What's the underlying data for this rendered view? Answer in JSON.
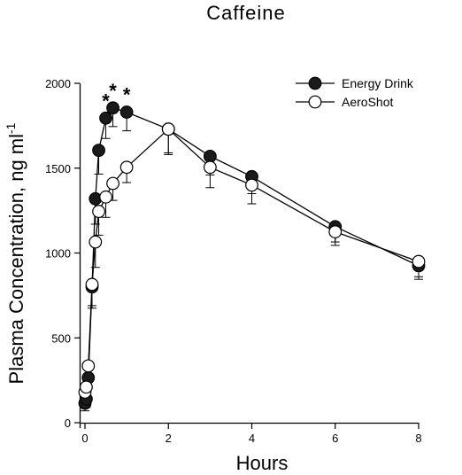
{
  "chart_data": {
    "type": "line",
    "title": "Caffeine",
    "xlabel": "Hours",
    "ylabel": "Plasma Concentration, ng ml",
    "ylabel_superscript": "-1",
    "xlim": [
      0,
      8
    ],
    "ylim": [
      0,
      2000
    ],
    "x_ticks": [
      "0",
      "2",
      "4",
      "6",
      "8"
    ],
    "y_ticks": [
      "0",
      "500",
      "1000",
      "1500",
      "2000"
    ],
    "legend_position": "top-right",
    "grid": false,
    "significance_marker": "*",
    "significant_x": [
      0.5,
      0.67,
      1
    ],
    "series": [
      {
        "name": "Energy Drink",
        "marker": "filled-circle",
        "color": "#1a1a1a",
        "x": [
          0,
          0.03,
          0.08,
          0.17,
          0.25,
          0.33,
          0.5,
          0.67,
          1,
          2,
          3,
          4,
          6,
          8
        ],
        "values": [
          115,
          140,
          265,
          800,
          1320,
          1605,
          1795,
          1855,
          1830,
          1730,
          1570,
          1450,
          1155,
          925
        ],
        "error": [
          45,
          50,
          60,
          110,
          150,
          140,
          120,
          110,
          110,
          150,
          110,
          100,
          90,
          80
        ]
      },
      {
        "name": "AeroShot",
        "marker": "open-circle",
        "color": "#1a1a1a",
        "x": [
          0,
          0.03,
          0.08,
          0.17,
          0.25,
          0.33,
          0.5,
          0.67,
          1,
          2,
          3,
          4,
          6,
          8
        ],
        "values": [
          180,
          210,
          335,
          815,
          1065,
          1245,
          1330,
          1410,
          1505,
          1730,
          1505,
          1400,
          1125,
          950
        ],
        "error": [
          80,
          60,
          90,
          140,
          150,
          140,
          120,
          100,
          90,
          140,
          120,
          110,
          80,
          90
        ]
      }
    ]
  }
}
